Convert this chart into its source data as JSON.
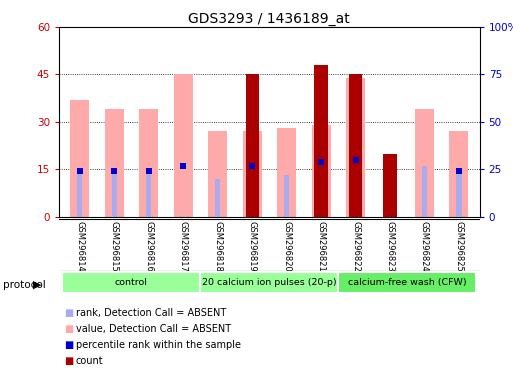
{
  "title": "GDS3293 / 1436189_at",
  "samples": [
    "GSM296814",
    "GSM296815",
    "GSM296816",
    "GSM296817",
    "GSM296818",
    "GSM296819",
    "GSM296820",
    "GSM296821",
    "GSM296822",
    "GSM296823",
    "GSM296824",
    "GSM296825"
  ],
  "count_values": [
    0,
    0,
    0,
    0,
    0,
    45,
    0,
    48,
    45,
    20,
    0,
    0
  ],
  "count_color": "#aa0000",
  "value_absent": [
    37,
    34,
    34,
    45,
    27,
    27,
    28,
    29,
    44,
    0,
    34,
    27
  ],
  "value_absent_color": "#ffaaaa",
  "rank_sample_values": [
    24,
    24,
    24,
    27,
    0,
    27,
    0,
    29,
    30,
    0,
    0,
    24
  ],
  "rank_sample_color": "#0000cc",
  "rank_absent_values": [
    24,
    24,
    24,
    0,
    20,
    0,
    22,
    0,
    0,
    0,
    27,
    24
  ],
  "rank_absent_color": "#aaaaee",
  "ylim_left": [
    0,
    60
  ],
  "ylim_right": [
    0,
    100
  ],
  "yticks_left": [
    0,
    15,
    30,
    45,
    60
  ],
  "yticks_right": [
    0,
    25,
    50,
    75,
    100
  ],
  "ytick_labels_left": [
    "0",
    "15",
    "30",
    "45",
    "60"
  ],
  "ytick_labels_right": [
    "0",
    "25",
    "50",
    "75",
    "100%"
  ],
  "left_axis_color": "#cc0000",
  "right_axis_color": "#0000cc",
  "bg_color": "#ffffff",
  "plot_bg_color": "#ffffff",
  "tick_label_area_color": "#cccccc",
  "protocol_groups": [
    {
      "start": 0,
      "end": 3,
      "label": "control",
      "color": "#99ff99"
    },
    {
      "start": 4,
      "end": 7,
      "label": "20 calcium ion pulses (20-p)",
      "color": "#99ff99"
    },
    {
      "start": 8,
      "end": 11,
      "label": "calcium-free wash (CFW)",
      "color": "#66ee66"
    }
  ],
  "legend_items": [
    {
      "color": "#aa0000",
      "label": "count"
    },
    {
      "color": "#0000cc",
      "label": "percentile rank within the sample"
    },
    {
      "color": "#ffaaaa",
      "label": "value, Detection Call = ABSENT"
    },
    {
      "color": "#aaaaee",
      "label": "rank, Detection Call = ABSENT"
    }
  ]
}
